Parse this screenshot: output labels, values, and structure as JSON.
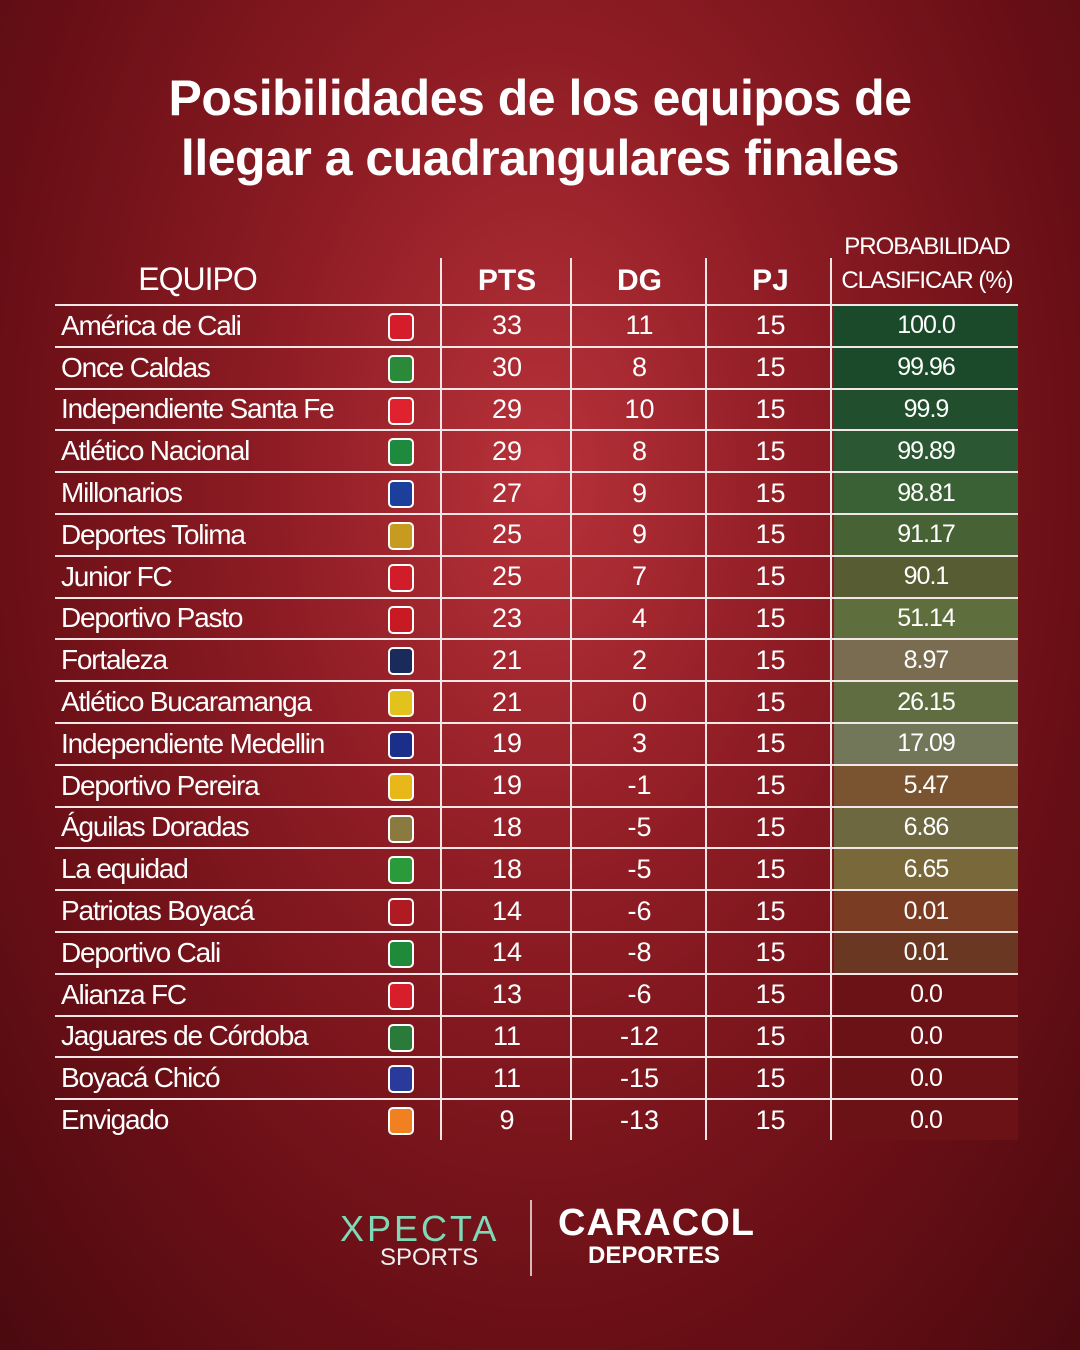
{
  "title_line1": "Posibilidades de los equipos de",
  "title_line2": "llegar a cuadrangulares finales",
  "headers": {
    "team": "EQUIPO",
    "pts": "PTS",
    "dg": "DG",
    "pj": "PJ",
    "prob_line1": "PROBABILIDAD",
    "prob_line2": "CLASIFICAR (%)"
  },
  "rows": [
    {
      "team": "América de Cali",
      "pts": "33",
      "dg": "11",
      "pj": "15",
      "prob": "100.0",
      "color": "#1b4a2a",
      "logo": "#d61c2a"
    },
    {
      "team": "Once Caldas",
      "pts": "30",
      "dg": "8",
      "pj": "15",
      "prob": "99.96",
      "color": "#1b4a2a",
      "logo": "#2a8a3a"
    },
    {
      "team": "Independiente Santa Fe",
      "pts": "29",
      "dg": "10",
      "pj": "15",
      "prob": "99.9",
      "color": "#214f2e",
      "logo": "#e0222e"
    },
    {
      "team": "Atlético Nacional",
      "pts": "29",
      "dg": "8",
      "pj": "15",
      "prob": "99.89",
      "color": "#2b5832",
      "logo": "#1d8a3e"
    },
    {
      "team": "Millonarios",
      "pts": "27",
      "dg": "9",
      "pj": "15",
      "prob": "98.81",
      "color": "#3a6135",
      "logo": "#1b3f9a"
    },
    {
      "team": "Deportes Tolima",
      "pts": "25",
      "dg": "9",
      "pj": "15",
      "prob": "91.17",
      "color": "#476234",
      "logo": "#c79a20"
    },
    {
      "team": "Junior FC",
      "pts": "25",
      "dg": "7",
      "pj": "15",
      "prob": "90.1",
      "color": "#585c32",
      "logo": "#d11c2a"
    },
    {
      "team": "Deportivo Pasto",
      "pts": "23",
      "dg": "4",
      "pj": "15",
      "prob": "51.14",
      "color": "#5e6e3c",
      "logo": "#c81a22"
    },
    {
      "team": "Fortaleza",
      "pts": "21",
      "dg": "2",
      "pj": "15",
      "prob": "8.97",
      "color": "#7a6c50",
      "logo": "#1a2a5a"
    },
    {
      "team": "Atlético Bucaramanga",
      "pts": "21",
      "dg": "0",
      "pj": "15",
      "prob": "26.15",
      "color": "#606d40",
      "logo": "#e2c21c"
    },
    {
      "team": "Independiente Medellin",
      "pts": "19",
      "dg": "3",
      "pj": "15",
      "prob": "17.09",
      "color": "#737759",
      "logo": "#1a2e8a"
    },
    {
      "team": "Deportivo Pereira",
      "pts": "19",
      "dg": "-1",
      "pj": "15",
      "prob": "5.47",
      "color": "#7a5430",
      "logo": "#e8b81a"
    },
    {
      "team": "Águilas Doradas",
      "pts": "18",
      "dg": "-5",
      "pj": "15",
      "prob": "6.86",
      "color": "#6d6840",
      "logo": "#8a7a40"
    },
    {
      "team": "La equidad",
      "pts": "18",
      "dg": "-5",
      "pj": "15",
      "prob": "6.65",
      "color": "#78683a",
      "logo": "#2a9a3a"
    },
    {
      "team": "Patriotas Boyacá",
      "pts": "14",
      "dg": "-6",
      "pj": "15",
      "prob": "0.01",
      "color": "#7a3c22",
      "logo": "#b01a22"
    },
    {
      "team": "Deportivo Cali",
      "pts": "14",
      "dg": "-8",
      "pj": "15",
      "prob": "0.01",
      "color": "#6a3822",
      "logo": "#1e8a3a"
    },
    {
      "team": "Alianza FC",
      "pts": "13",
      "dg": "-6",
      "pj": "15",
      "prob": "0.0",
      "color": "#6a1216",
      "logo": "#d81e2a"
    },
    {
      "team": "Jaguares de Córdoba",
      "pts": "11",
      "dg": "-12",
      "pj": "15",
      "prob": "0.0",
      "color": "#6a1216",
      "logo": "#2a7a3a"
    },
    {
      "team": "Boyacá Chicó",
      "pts": "11",
      "dg": "-15",
      "pj": "15",
      "prob": "0.0",
      "color": "#6a1216",
      "logo": "#2a3a9a"
    },
    {
      "team": "Envigado",
      "pts": "9",
      "dg": "-13",
      "pj": "15",
      "prob": "0.0",
      "color": "#6a1216",
      "logo": "#f08020"
    }
  ],
  "footer": {
    "xpecta": "XPECTA",
    "sports": "SPORTS",
    "caracol": "CARACOL",
    "deportes": "DEPORTES"
  }
}
